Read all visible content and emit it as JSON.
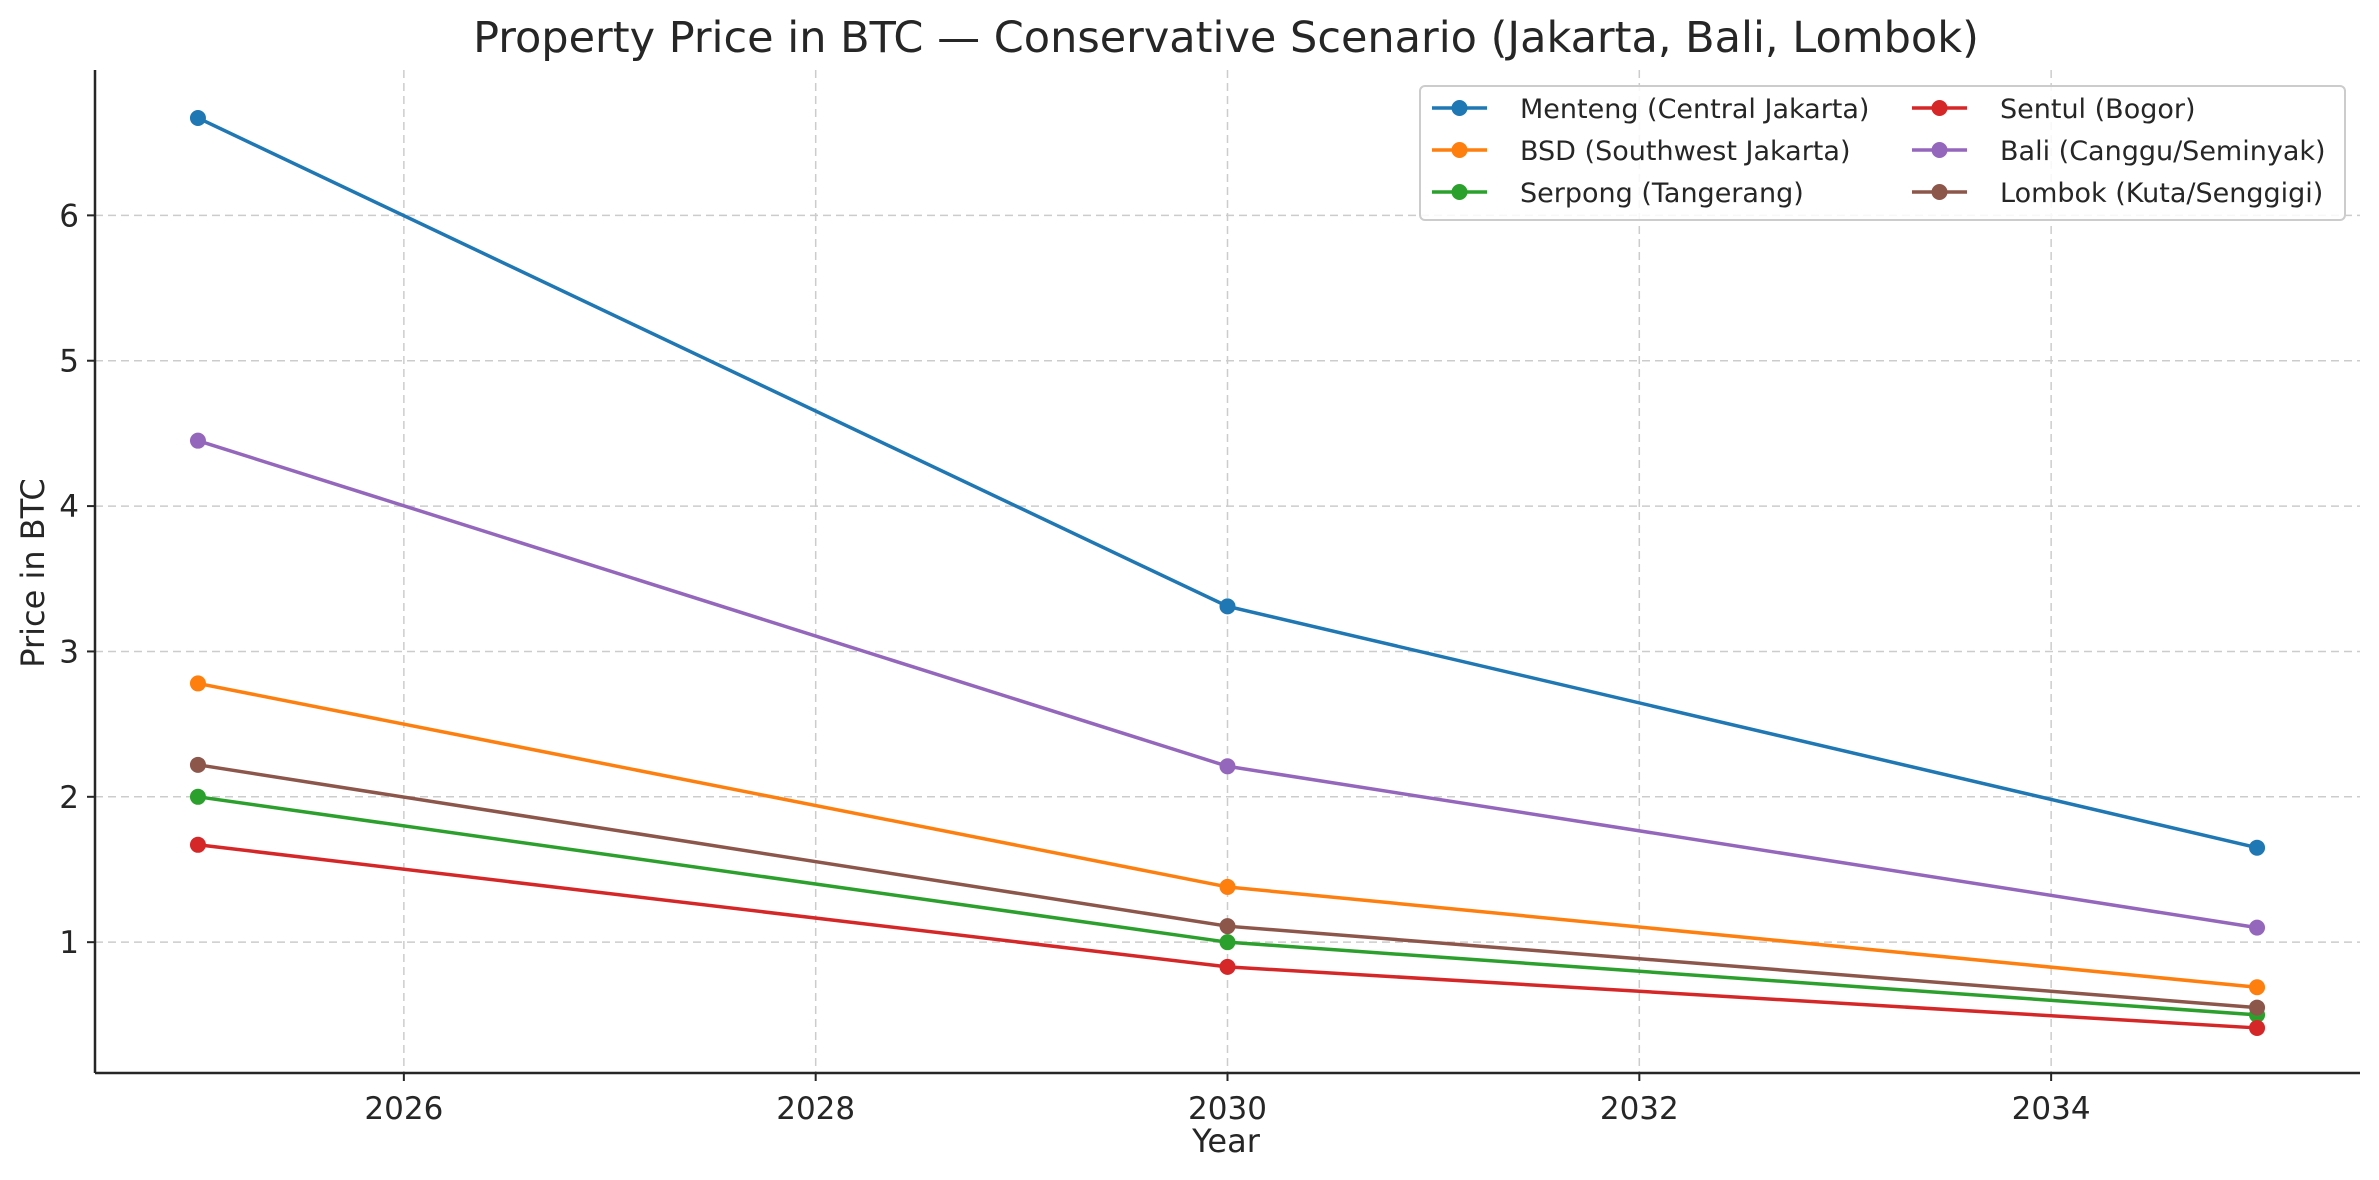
{
  "chart_data": {
    "type": "line",
    "title": "Property Price in BTC — Conservative Scenario (Jakarta, Bali, Lombok)",
    "xlabel": "Year",
    "ylabel": "Price in BTC",
    "x": [
      2025,
      2030,
      2035
    ],
    "xlim": [
      2024.5,
      2035.5
    ],
    "ylim": [
      0.1,
      7.0
    ],
    "xticks": [
      2026,
      2028,
      2030,
      2032,
      2034
    ],
    "yticks": [
      1,
      2,
      3,
      4,
      5,
      6
    ],
    "grid": true,
    "legend_position": "top-right",
    "series": [
      {
        "name": "Menteng (Central Jakarta)",
        "color": "#1f77b4",
        "values": [
          6.67,
          3.31,
          1.65
        ]
      },
      {
        "name": "BSD (Southwest Jakarta)",
        "color": "#ff7f0e",
        "values": [
          2.78,
          1.38,
          0.69
        ]
      },
      {
        "name": "Serpong (Tangerang)",
        "color": "#2ca02c",
        "values": [
          2.0,
          1.0,
          0.5
        ]
      },
      {
        "name": "Sentul (Bogor)",
        "color": "#d62728",
        "values": [
          1.67,
          0.83,
          0.41
        ]
      },
      {
        "name": "Bali (Canggu/Seminyak)",
        "color": "#9467bd",
        "values": [
          4.45,
          2.21,
          1.1
        ]
      },
      {
        "name": "Lombok (Kuta/Senggigi)",
        "color": "#8c564b",
        "values": [
          2.22,
          1.11,
          0.55
        ]
      }
    ]
  }
}
